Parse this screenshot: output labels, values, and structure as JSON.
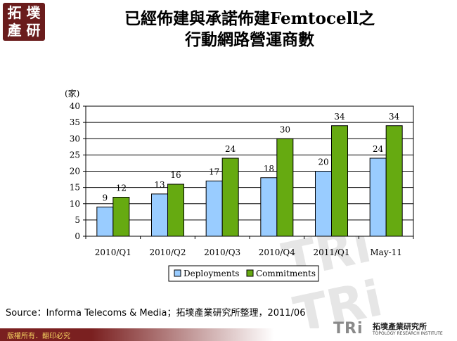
{
  "logo": {
    "line1": "拓 墣",
    "line2": "產 研"
  },
  "title": {
    "line1": "已經佈建與承諾佈建Femtocell之",
    "line2": "行動網路營運商數"
  },
  "watermark": "TRi TRi TRi",
  "chart_data": {
    "type": "bar",
    "unit_label": "(家)",
    "categories": [
      "2010/Q1",
      "2010/Q2",
      "2010/Q3",
      "2010/Q4",
      "2011/Q1",
      "May-11"
    ],
    "series": [
      {
        "name": "Deployments",
        "values": [
          9,
          13,
          17,
          18,
          20,
          24
        ],
        "color": "#99ccff"
      },
      {
        "name": "Commitments",
        "values": [
          12,
          16,
          24,
          30,
          34,
          34
        ],
        "color": "#66aa11"
      }
    ],
    "ylim": [
      0,
      40
    ],
    "yticks": [
      0,
      5,
      10,
      15,
      20,
      25,
      30,
      35,
      40
    ],
    "grid": true,
    "legend": "bottom",
    "data_labels": true
  },
  "source": "Source：Informa Telecoms & Media；拓墣產業研究所整理，2011/06",
  "footer": {
    "copyright": "版權所有．翻印必究",
    "org_logo": "TRi",
    "org_name": "拓墣產業研究所",
    "org_name_en": "TOPOLOGY RESEARCH INSTITUTE"
  }
}
